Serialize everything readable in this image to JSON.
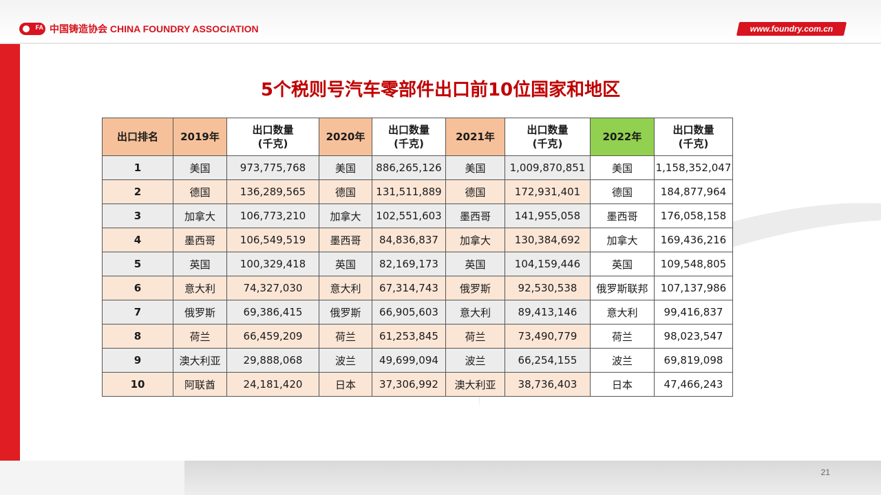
{
  "header": {
    "logo_mark": "FA",
    "brand": "中国铸造协会 CHINA FOUNDRY ASSOCIATION",
    "url": "www.foundry.com.cn"
  },
  "title": "5个税则号汽车零部件出口前10位国家和地区",
  "table": {
    "headers": [
      "出口排名",
      "2019年",
      "出口数量\n(千克)",
      "2020年",
      "出口数量\n(千克)",
      "2021年",
      "出口数量\n(千克)",
      "2022年",
      "出口数量\n(千克)"
    ],
    "rows": [
      [
        "1",
        "美国",
        "973,775,768",
        "美国",
        "886,265,126",
        "美国",
        "1,009,870,851",
        "美国",
        "1,158,352,047"
      ],
      [
        "2",
        "德国",
        "136,289,565",
        "德国",
        "131,511,889",
        "德国",
        "172,931,401",
        "德国",
        "184,877,964"
      ],
      [
        "3",
        "加拿大",
        "106,773,210",
        "加拿大",
        "102,551,603",
        "墨西哥",
        "141,955,058",
        "墨西哥",
        "176,058,158"
      ],
      [
        "4",
        "墨西哥",
        "106,549,519",
        "墨西哥",
        "84,836,837",
        "加拿大",
        "130,384,692",
        "加拿大",
        "169,436,216"
      ],
      [
        "5",
        "英国",
        "100,329,418",
        "英国",
        "82,169,173",
        "英国",
        "104,159,446",
        "英国",
        "109,548,805"
      ],
      [
        "6",
        "意大利",
        "74,327,030",
        "意大利",
        "67,314,743",
        "俄罗斯",
        "92,530,538",
        "俄罗斯联邦",
        "107,137,986"
      ],
      [
        "7",
        "俄罗斯",
        "69,386,415",
        "俄罗斯",
        "66,905,603",
        "意大利",
        "89,413,146",
        "意大利",
        "99,416,837"
      ],
      [
        "8",
        "荷兰",
        "66,459,209",
        "荷兰",
        "61,253,845",
        "荷兰",
        "73,490,779",
        "荷兰",
        "98,023,547"
      ],
      [
        "9",
        "澳大利亚",
        "29,888,068",
        "波兰",
        "49,699,094",
        "波兰",
        "66,254,155",
        "波兰",
        "69,819,098"
      ],
      [
        "10",
        "阿联酋",
        "24,181,420",
        "日本",
        "37,306,992",
        "澳大利亚",
        "38,736,403",
        "日本",
        "47,466,243"
      ]
    ]
  },
  "footer": {
    "page_number": "21"
  },
  "colors": {
    "accent_red": "#d7141f",
    "title_red": "#c00000",
    "header_orange": "#f6c19a",
    "header_green": "#92d050",
    "row_gray": "#ececec",
    "row_peach": "#fbe6d6"
  }
}
